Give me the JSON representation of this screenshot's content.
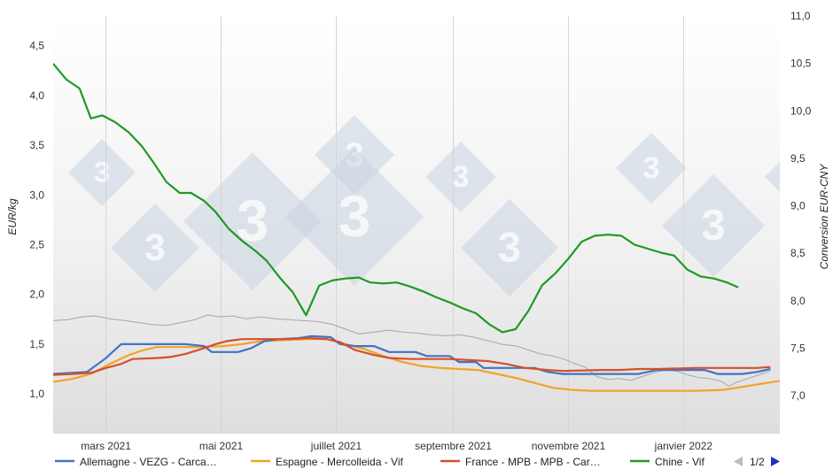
{
  "chart_data": {
    "type": "line",
    "watermark_text": "3",
    "ylabel_left": "EUR/kg",
    "ylabel_right": "Conversion EUR-CNY",
    "ylim_left": [
      0.6,
      4.8
    ],
    "ylim_right": [
      6.6,
      11.0
    ],
    "y_ticks_left": [
      "1,0",
      "1,5",
      "2,0",
      "2,5",
      "3,0",
      "3,5",
      "4,0",
      "4,5"
    ],
    "y_tick_values_left": [
      1.0,
      1.5,
      2.0,
      2.5,
      3.0,
      3.5,
      4.0,
      4.5
    ],
    "y_ticks_right": [
      "7,0",
      "7,5",
      "8,0",
      "8,5",
      "9,0",
      "9,5",
      "10,0",
      "10,5",
      "11,0"
    ],
    "y_tick_values_right": [
      7.0,
      7.5,
      8.0,
      8.5,
      9.0,
      9.5,
      10.0,
      10.5,
      11.0
    ],
    "x_range_days": [
      0,
      385
    ],
    "x_ticks": [
      {
        "label": "mars 2021",
        "day": 28
      },
      {
        "label": "mai 2021",
        "day": 89
      },
      {
        "label": "juillet 2021",
        "day": 150
      },
      {
        "label": "septembre 2021",
        "day": 212
      },
      {
        "label": "novembre 2021",
        "day": 273
      },
      {
        "label": "janvier 2022",
        "day": 334
      }
    ],
    "grid": "vertical",
    "legend_position": "bottom",
    "series": [
      {
        "name": "Allemagne - VEZG - Carca…",
        "color": "#4472c4",
        "axis": "left",
        "points": [
          [
            0,
            1.2
          ],
          [
            10,
            1.21
          ],
          [
            18,
            1.22
          ],
          [
            28,
            1.36
          ],
          [
            36,
            1.5
          ],
          [
            50,
            1.5
          ],
          [
            62,
            1.5
          ],
          [
            70,
            1.5
          ],
          [
            80,
            1.48
          ],
          [
            84,
            1.42
          ],
          [
            98,
            1.42
          ],
          [
            105,
            1.46
          ],
          [
            112,
            1.53
          ],
          [
            120,
            1.55
          ],
          [
            130,
            1.56
          ],
          [
            137,
            1.58
          ],
          [
            147,
            1.57
          ],
          [
            152,
            1.5
          ],
          [
            160,
            1.48
          ],
          [
            170,
            1.48
          ],
          [
            178,
            1.42
          ],
          [
            192,
            1.42
          ],
          [
            198,
            1.38
          ],
          [
            210,
            1.38
          ],
          [
            215,
            1.32
          ],
          [
            224,
            1.32
          ],
          [
            228,
            1.26
          ],
          [
            240,
            1.26
          ],
          [
            255,
            1.26
          ],
          [
            262,
            1.22
          ],
          [
            270,
            1.2
          ],
          [
            300,
            1.2
          ],
          [
            310,
            1.2
          ],
          [
            320,
            1.24
          ],
          [
            335,
            1.24
          ],
          [
            345,
            1.24
          ],
          [
            352,
            1.2
          ],
          [
            365,
            1.2
          ],
          [
            373,
            1.22
          ],
          [
            380,
            1.25
          ]
        ]
      },
      {
        "name": "Espagne - Mercolleida - Vif",
        "color": "#f0a32a",
        "axis": "left",
        "points": [
          [
            0,
            1.12
          ],
          [
            10,
            1.15
          ],
          [
            20,
            1.2
          ],
          [
            30,
            1.3
          ],
          [
            40,
            1.39
          ],
          [
            48,
            1.44
          ],
          [
            55,
            1.47
          ],
          [
            65,
            1.47
          ],
          [
            75,
            1.47
          ],
          [
            90,
            1.48
          ],
          [
            100,
            1.5
          ],
          [
            110,
            1.53
          ],
          [
            122,
            1.54
          ],
          [
            135,
            1.55
          ],
          [
            145,
            1.55
          ],
          [
            155,
            1.5
          ],
          [
            165,
            1.45
          ],
          [
            175,
            1.38
          ],
          [
            185,
            1.32
          ],
          [
            195,
            1.28
          ],
          [
            205,
            1.26
          ],
          [
            215,
            1.25
          ],
          [
            225,
            1.24
          ],
          [
            235,
            1.2
          ],
          [
            245,
            1.16
          ],
          [
            255,
            1.11
          ],
          [
            265,
            1.06
          ],
          [
            275,
            1.04
          ],
          [
            285,
            1.03
          ],
          [
            300,
            1.03
          ],
          [
            320,
            1.03
          ],
          [
            340,
            1.03
          ],
          [
            355,
            1.04
          ],
          [
            365,
            1.07
          ],
          [
            375,
            1.1
          ],
          [
            385,
            1.13
          ]
        ]
      },
      {
        "name": "France - MPB - MPB - Car…",
        "color": "#d5502a",
        "axis": "left",
        "points": [
          [
            0,
            1.19
          ],
          [
            10,
            1.2
          ],
          [
            20,
            1.21
          ],
          [
            28,
            1.26
          ],
          [
            36,
            1.3
          ],
          [
            42,
            1.35
          ],
          [
            55,
            1.36
          ],
          [
            62,
            1.37
          ],
          [
            70,
            1.4
          ],
          [
            80,
            1.46
          ],
          [
            86,
            1.5
          ],
          [
            92,
            1.53
          ],
          [
            100,
            1.55
          ],
          [
            115,
            1.55
          ],
          [
            125,
            1.55
          ],
          [
            135,
            1.56
          ],
          [
            145,
            1.55
          ],
          [
            152,
            1.52
          ],
          [
            160,
            1.44
          ],
          [
            170,
            1.39
          ],
          [
            178,
            1.36
          ],
          [
            190,
            1.35
          ],
          [
            200,
            1.35
          ],
          [
            210,
            1.35
          ],
          [
            220,
            1.34
          ],
          [
            230,
            1.33
          ],
          [
            240,
            1.3
          ],
          [
            250,
            1.26
          ],
          [
            262,
            1.24
          ],
          [
            270,
            1.23
          ],
          [
            290,
            1.24
          ],
          [
            300,
            1.24
          ],
          [
            310,
            1.25
          ],
          [
            320,
            1.25
          ],
          [
            340,
            1.26
          ],
          [
            355,
            1.26
          ],
          [
            365,
            1.26
          ],
          [
            373,
            1.26
          ],
          [
            380,
            1.27
          ]
        ]
      },
      {
        "name": "Chine - Vif",
        "color": "#1e9a24",
        "axis": "left",
        "points": [
          [
            0,
            4.32
          ],
          [
            7,
            4.16
          ],
          [
            14,
            4.07
          ],
          [
            20,
            3.77
          ],
          [
            26,
            3.8
          ],
          [
            33,
            3.73
          ],
          [
            40,
            3.63
          ],
          [
            47,
            3.49
          ],
          [
            53,
            3.33
          ],
          [
            60,
            3.13
          ],
          [
            67,
            3.02
          ],
          [
            73,
            3.02
          ],
          [
            80,
            2.94
          ],
          [
            86,
            2.83
          ],
          [
            93,
            2.66
          ],
          [
            100,
            2.54
          ],
          [
            107,
            2.44
          ],
          [
            113,
            2.34
          ],
          [
            120,
            2.17
          ],
          [
            127,
            2.02
          ],
          [
            134,
            1.79
          ],
          [
            141,
            2.09
          ],
          [
            148,
            2.14
          ],
          [
            155,
            2.16
          ],
          [
            162,
            2.17
          ],
          [
            168,
            2.12
          ],
          [
            175,
            2.11
          ],
          [
            182,
            2.12
          ],
          [
            189,
            2.08
          ],
          [
            196,
            2.03
          ],
          [
            203,
            1.97
          ],
          [
            210,
            1.92
          ],
          [
            217,
            1.86
          ],
          [
            224,
            1.81
          ],
          [
            231,
            1.7
          ],
          [
            238,
            1.62
          ],
          [
            245,
            1.65
          ],
          [
            252,
            1.84
          ],
          [
            259,
            2.09
          ],
          [
            266,
            2.21
          ],
          [
            273,
            2.36
          ],
          [
            280,
            2.53
          ],
          [
            287,
            2.59
          ],
          [
            294,
            2.6
          ],
          [
            301,
            2.59
          ],
          [
            308,
            2.5
          ],
          [
            315,
            2.46
          ],
          [
            322,
            2.42
          ],
          [
            329,
            2.39
          ],
          [
            336,
            2.25
          ],
          [
            343,
            2.18
          ],
          [
            350,
            2.16
          ],
          [
            357,
            2.12
          ],
          [
            363,
            2.07
          ]
        ]
      },
      {
        "name": "",
        "color": "#a6a6a6",
        "axis": "right",
        "points": [
          [
            0,
            7.79
          ],
          [
            8,
            7.8
          ],
          [
            15,
            7.83
          ],
          [
            22,
            7.84
          ],
          [
            30,
            7.81
          ],
          [
            38,
            7.79
          ],
          [
            45,
            7.77
          ],
          [
            52,
            7.75
          ],
          [
            60,
            7.74
          ],
          [
            68,
            7.77
          ],
          [
            75,
            7.8
          ],
          [
            82,
            7.85
          ],
          [
            88,
            7.83
          ],
          [
            95,
            7.84
          ],
          [
            102,
            7.81
          ],
          [
            110,
            7.83
          ],
          [
            118,
            7.81
          ],
          [
            125,
            7.8
          ],
          [
            132,
            7.79
          ],
          [
            140,
            7.78
          ],
          [
            148,
            7.75
          ],
          [
            155,
            7.7
          ],
          [
            162,
            7.65
          ],
          [
            170,
            7.67
          ],
          [
            178,
            7.69
          ],
          [
            185,
            7.67
          ],
          [
            192,
            7.66
          ],
          [
            200,
            7.64
          ],
          [
            208,
            7.63
          ],
          [
            215,
            7.64
          ],
          [
            222,
            7.62
          ],
          [
            230,
            7.58
          ],
          [
            238,
            7.54
          ],
          [
            246,
            7.52
          ],
          [
            252,
            7.48
          ],
          [
            258,
            7.44
          ],
          [
            264,
            7.42
          ],
          [
            270,
            7.39
          ],
          [
            276,
            7.34
          ],
          [
            282,
            7.3
          ],
          [
            288,
            7.2
          ],
          [
            294,
            7.17
          ],
          [
            300,
            7.18
          ],
          [
            306,
            7.16
          ],
          [
            312,
            7.2
          ],
          [
            318,
            7.24
          ],
          [
            324,
            7.27
          ],
          [
            330,
            7.26
          ],
          [
            336,
            7.22
          ],
          [
            342,
            7.19
          ],
          [
            348,
            7.18
          ],
          [
            354,
            7.15
          ],
          [
            358,
            7.1
          ],
          [
            362,
            7.14
          ],
          [
            368,
            7.18
          ],
          [
            374,
            7.22
          ],
          [
            380,
            7.26
          ]
        ]
      }
    ],
    "legend": [
      {
        "label": "Allemagne - VEZG - Carca…",
        "color": "#4472c4"
      },
      {
        "label": "Espagne - Mercolleida - Vif",
        "color": "#f0a32a"
      },
      {
        "label": "France - MPB - MPB - Car…",
        "color": "#d5502a"
      },
      {
        "label": "Chine - Vif",
        "color": "#1e9a24"
      }
    ],
    "pager": {
      "text": "1/2",
      "prev_icon": "triangle-left-icon",
      "next_icon": "triangle-right-icon",
      "prev_color": "#bbbbbb",
      "next_color": "#1d2fb8"
    }
  }
}
